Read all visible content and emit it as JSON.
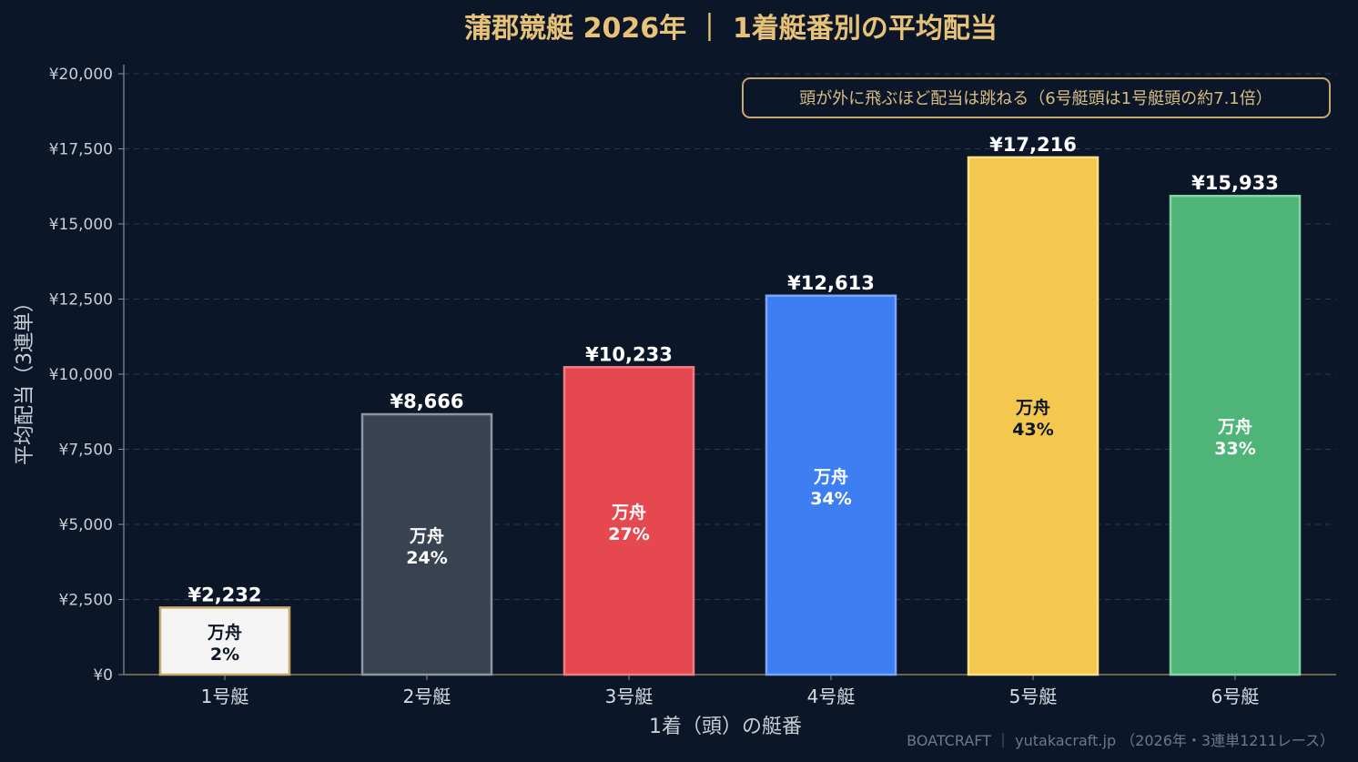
{
  "chart_data": {
    "type": "bar",
    "title": "蒲郡競艇 2026年 ｜ 1着艇番別の平均配当",
    "xlabel": "1着（頭）の艇番",
    "ylabel": "平均配当（3連単）",
    "ylim": [
      0,
      20000
    ],
    "yticks": [
      0,
      2500,
      5000,
      7500,
      10000,
      12500,
      15000,
      17500,
      20000
    ],
    "ytick_labels": [
      "¥0",
      "¥2,500",
      "¥5,000",
      "¥7,500",
      "¥10,000",
      "¥12,500",
      "¥15,000",
      "¥17,500",
      "¥20,000"
    ],
    "grid": true,
    "categories": [
      "1号艇",
      "2号艇",
      "3号艇",
      "4号艇",
      "5号艇",
      "6号艇"
    ],
    "values": [
      2232,
      8666,
      10233,
      12613,
      17216,
      15933
    ],
    "value_labels": [
      "¥2,232",
      "¥8,666",
      "¥10,233",
      "¥12,613",
      "¥17,216",
      "¥15,933"
    ],
    "inner_label_title": "万舟",
    "manshu_rates": [
      "2%",
      "24%",
      "27%",
      "34%",
      "43%",
      "33%"
    ],
    "bar_colors": [
      "#f5f5f5",
      "#394250",
      "#e5484f",
      "#3d7ff2",
      "#f4c74f",
      "#4fb477"
    ],
    "bar_edge_colors": [
      "#c9a96b",
      "#8d96a3",
      "#f07d82",
      "#79a6f7",
      "#fadf87",
      "#86d3a3"
    ],
    "inner_text_colors": [
      "#0b1728",
      "#ffffff",
      "#ffffff",
      "#ffffff",
      "#0b1728",
      "#ffffff"
    ],
    "annotation": "頭が外に飛ぶほど配当は跳ねる（6号艇頭は1号艇頭の約7.1倍）",
    "footer": "BOATCRAFT ｜ yutakacraft.jp （2026年・3連単1211レース）"
  }
}
